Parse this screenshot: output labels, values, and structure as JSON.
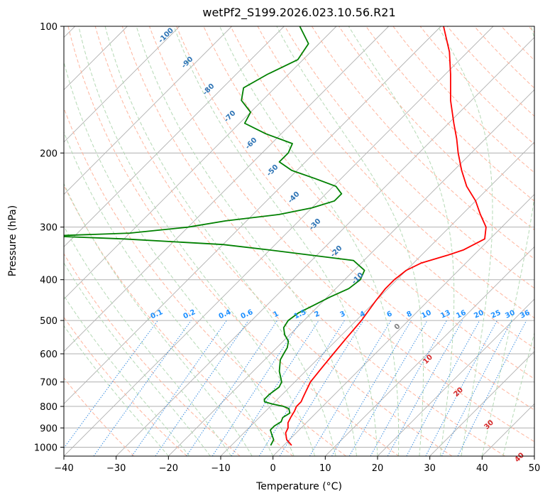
{
  "chart_data": {
    "type": "line",
    "title": "wetPf2_S199.2026.023.10.56.R21",
    "xlabel": "Temperature (°C)",
    "ylabel": "Pressure (hPa)",
    "xlim": [
      -40,
      50
    ],
    "ylim": [
      1050,
      100
    ],
    "y_scale": "log",
    "grid": true,
    "x_ticks": [
      -40,
      -30,
      -20,
      -10,
      0,
      10,
      20,
      30,
      40,
      50
    ],
    "y_ticks": [
      100,
      200,
      300,
      400,
      500,
      600,
      700,
      800,
      900,
      1000
    ],
    "series": [
      {
        "color": "#ff0000",
        "p": [
          990,
          960,
          925,
          900,
          875,
          850,
          820,
          800,
          780,
          760,
          740,
          700,
          650,
          600,
          550,
          500,
          450,
          420,
          400,
          380,
          365,
          350,
          340,
          320,
          300,
          280,
          260,
          240,
          220,
          200,
          185,
          170,
          150,
          130,
          115,
          100
        ],
        "t": [
          1.5,
          -0.5,
          -2.0,
          -2.5,
          -3.5,
          -4.0,
          -4.5,
          -5.0,
          -5.0,
          -5.5,
          -6.0,
          -7.0,
          -7.5,
          -8.0,
          -8.5,
          -9.0,
          -10.0,
          -10.5,
          -10.5,
          -10.0,
          -8.5,
          -5.0,
          -3.0,
          -1.0,
          -3.0,
          -6.5,
          -10.0,
          -14.5,
          -18.5,
          -22.5,
          -25.5,
          -29.0,
          -34.0,
          -39.0,
          -43.5,
          -49.5
        ]
      },
      {
        "color": "#008000",
        "p": [
          990,
          960,
          930,
          910,
          890,
          870,
          850,
          830,
          810,
          800,
          790,
          780,
          770,
          750,
          720,
          700,
          660,
          620,
          600,
          580,
          560,
          540,
          520,
          500,
          480,
          460,
          440,
          420,
          400,
          380,
          360,
          340,
          330,
          320,
          315,
          310,
          300,
          290,
          280,
          270,
          260,
          250,
          240,
          230,
          220,
          210,
          200,
          190,
          180,
          170,
          160,
          150,
          140,
          130,
          120,
          110,
          100
        ],
        "t": [
          -2.5,
          -3.0,
          -4.5,
          -5.5,
          -5.5,
          -5.0,
          -5.5,
          -5.0,
          -6.0,
          -7.5,
          -10.0,
          -12.0,
          -12.5,
          -12.5,
          -12.0,
          -12.5,
          -15.0,
          -17.0,
          -17.5,
          -18.0,
          -19.0,
          -21.0,
          -22.5,
          -23.0,
          -22.5,
          -21.0,
          -19.5,
          -17.5,
          -17.0,
          -18.0,
          -22.0,
          -40.0,
          -50.0,
          -70.0,
          -85.0,
          -70.0,
          -60.0,
          -54.0,
          -45.0,
          -40.0,
          -37.0,
          -37.0,
          -39.5,
          -45.0,
          -51.0,
          -55.0,
          -55.0,
          -56.0,
          -63.0,
          -69.0,
          -70.0,
          -74.0,
          -76.0,
          -74.0,
          -71.0,
          -72.0,
          -77.0
        ]
      }
    ],
    "dry_adiabat_labels": [
      "-100",
      "-90",
      "-80",
      "-70",
      "-60",
      "-50",
      "-40",
      "-30",
      "-20",
      "-10",
      "0",
      "10",
      "20",
      "30",
      "40"
    ],
    "mixing_ratio_labels": [
      "0.1",
      "0.2",
      "0.4",
      "0.6",
      "1",
      "1.5",
      "2",
      "3",
      "4",
      "6",
      "8",
      "10",
      "13",
      "16",
      "20",
      "25",
      "30",
      "36"
    ],
    "colors": {
      "temperature": "#ff0000",
      "dewpoint": "#008000",
      "isotherm": "#b0b0b0",
      "dry_adiabat": "#ffb59e",
      "moist_adiabat": "#b5d9b5",
      "mixing_ratio": "#3d8fe0",
      "adiabat_label": "#2e74b5",
      "mixing_label": "#1e90ff",
      "warm_label": "#d62728",
      "zero_label": "#808080"
    }
  }
}
